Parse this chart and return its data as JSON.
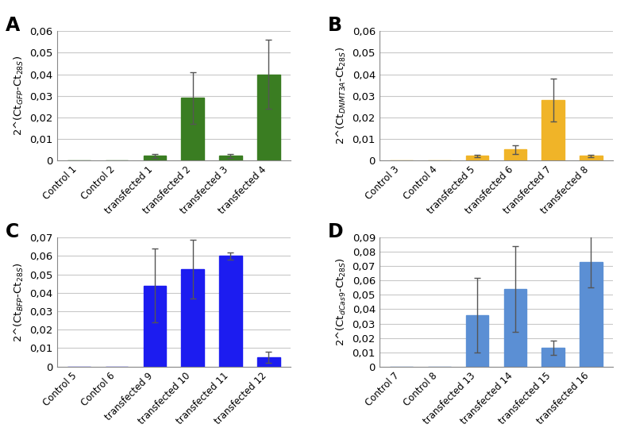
{
  "panels": [
    {
      "label": "A",
      "ylabel": "2^(Ct$_{GFP}$-Ct$_{28S}$)",
      "categories": [
        "Control 1",
        "Control 2",
        "transfected 1",
        "transfected 2",
        "transfected 3",
        "transfected 4"
      ],
      "values": [
        0.0,
        0.0,
        0.002,
        0.029,
        0.002,
        0.04
      ],
      "errors": [
        0.0,
        0.0,
        0.001,
        0.012,
        0.001,
        0.016
      ],
      "bar_color": "#3a7d22",
      "ylim": [
        0,
        0.06
      ],
      "yticks": [
        0.0,
        0.01,
        0.02,
        0.03,
        0.04,
        0.05,
        0.06
      ]
    },
    {
      "label": "B",
      "ylabel": "2^(Ct$_{DNMT3A}$-Ct$_{28S}$)",
      "categories": [
        "Control 3",
        "Control 4",
        "transfected 5",
        "transfected 6",
        "transfected 7",
        "transfected 8"
      ],
      "values": [
        0.0,
        0.0,
        0.002,
        0.005,
        0.028,
        0.002
      ],
      "errors": [
        0.0,
        0.0,
        0.0005,
        0.002,
        0.01,
        0.0005
      ],
      "bar_color": "#f0b428",
      "ylim": [
        0,
        0.06
      ],
      "yticks": [
        0.0,
        0.01,
        0.02,
        0.03,
        0.04,
        0.05,
        0.06
      ]
    },
    {
      "label": "C",
      "ylabel": "2^(Ct$_{BFP}$-Ct$_{28S}$)",
      "categories": [
        "Control 5",
        "Control 6",
        "transfected 9",
        "transfected 10",
        "transfected 11",
        "transfected 12"
      ],
      "values": [
        0.0,
        0.0,
        0.044,
        0.053,
        0.06,
        0.005
      ],
      "errors": [
        0.0,
        0.0,
        0.02,
        0.016,
        0.002,
        0.003
      ],
      "bar_color": "#1c1cf0",
      "ylim": [
        0,
        0.07
      ],
      "yticks": [
        0.0,
        0.01,
        0.02,
        0.03,
        0.04,
        0.05,
        0.06,
        0.07
      ]
    },
    {
      "label": "D",
      "ylabel": "2^(Ct$_{dCas9}$-Ct$_{28S}$)",
      "categories": [
        "Control 7",
        "Control 8",
        "transfected 13",
        "transfected 14",
        "transfected 15",
        "transfected 16"
      ],
      "values": [
        0.0,
        0.0,
        0.036,
        0.054,
        0.013,
        0.073
      ],
      "errors": [
        0.0,
        0.0,
        0.026,
        0.03,
        0.005,
        0.018
      ],
      "bar_color": "#5b8fd4",
      "ylim": [
        0,
        0.09
      ],
      "yticks": [
        0.0,
        0.01,
        0.02,
        0.03,
        0.04,
        0.05,
        0.06,
        0.07,
        0.08,
        0.09
      ]
    }
  ],
  "background_color": "#ffffff",
  "grid_color": "#c8c8c8",
  "error_color": "#555555",
  "tick_fontsize": 9.5,
  "ylabel_fontsize": 9.5,
  "panel_label_fontsize": 17,
  "xtick_fontsize": 8.5
}
